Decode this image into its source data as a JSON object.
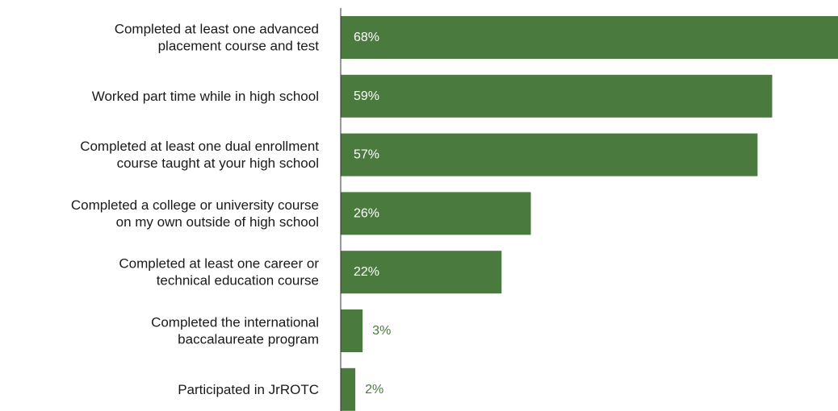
{
  "chart_data": {
    "type": "bar",
    "orientation": "horizontal",
    "categories": [
      [
        "Completed at least one advanced",
        "placement course and test"
      ],
      [
        "Worked part time while in high school"
      ],
      [
        "Completed at least one dual enrollment",
        "course taught at your high school"
      ],
      [
        "Completed a college or university course",
        "on my own outside of high school"
      ],
      [
        "Completed at least one career or",
        "technical education course"
      ],
      [
        "Completed the international",
        "baccalaureate program"
      ],
      [
        "Participated in JrROTC"
      ]
    ],
    "values": [
      68,
      59,
      57,
      26,
      22,
      3,
      2
    ],
    "value_labels": [
      "68%",
      "59%",
      "57%",
      "26%",
      "22%",
      "3%",
      "2%"
    ],
    "unit": "%",
    "xlim": [
      0,
      68
    ],
    "grid": false,
    "legend": "none",
    "colors": {
      "bar": "#4a7a3e",
      "label_inside": "#ffffff",
      "label_outside": "#4a7a3e",
      "axis": "#333333"
    }
  }
}
